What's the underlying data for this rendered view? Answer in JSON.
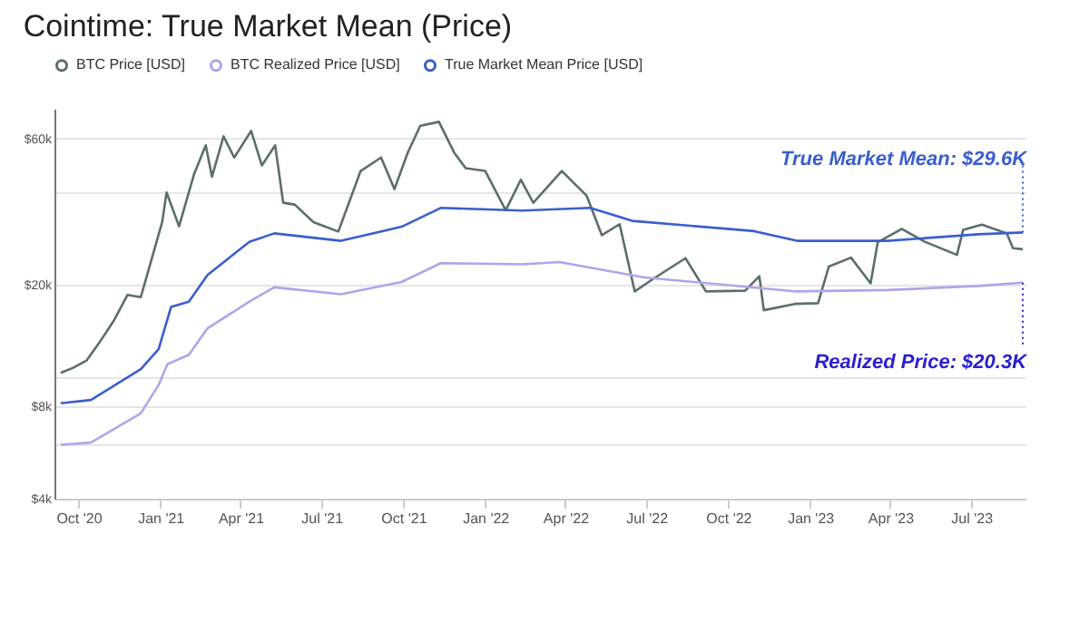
{
  "chart_data": {
    "type": "line",
    "title": "Cointime: True Market Mean (Price)",
    "x": [
      "2020-09-11",
      "2020-09-25",
      "2020-10-10",
      "2020-10-25",
      "2020-11-10",
      "2020-11-25",
      "2020-12-10",
      "2020-12-20",
      "2021-01-03",
      "2021-01-08",
      "2021-01-22",
      "2021-02-08",
      "2021-02-21",
      "2021-02-28",
      "2021-03-13",
      "2021-03-25",
      "2021-04-13",
      "2021-04-25",
      "2021-05-10",
      "2021-05-19",
      "2021-06-01",
      "2021-06-22",
      "2021-07-20",
      "2021-08-14",
      "2021-09-06",
      "2021-09-21",
      "2021-10-06",
      "2021-10-20",
      "2021-11-10",
      "2021-11-27",
      "2021-12-10",
      "2022-01-01",
      "2022-01-24",
      "2022-02-10",
      "2022-02-24",
      "2022-03-28",
      "2022-04-25",
      "2022-05-12",
      "2022-06-01",
      "2022-06-18",
      "2022-07-10",
      "2022-08-14",
      "2022-09-06",
      "2022-10-20",
      "2022-11-05",
      "2022-11-10",
      "2022-12-15",
      "2023-01-10",
      "2023-01-22",
      "2023-02-16",
      "2023-03-10",
      "2023-03-18",
      "2023-04-14",
      "2023-05-10",
      "2023-06-15",
      "2023-06-22",
      "2023-07-13",
      "2023-08-10",
      "2023-08-17",
      "2023-08-28"
    ],
    "series": [
      {
        "name": "BTC Price [USD]",
        "color": "#5b6f6c",
        "values": [
          10300,
          10700,
          11300,
          13000,
          15300,
          18500,
          18200,
          23000,
          32000,
          40000,
          31000,
          46000,
          57000,
          45000,
          61000,
          52000,
          63500,
          49000,
          57000,
          37000,
          36500,
          32000,
          29800,
          47000,
          52000,
          41000,
          54000,
          66000,
          68000,
          54000,
          48000,
          47000,
          35000,
          44000,
          37000,
          47000,
          39000,
          29000,
          31500,
          19000,
          21000,
          24400,
          19000,
          19100,
          21300,
          16500,
          17300,
          17400,
          22900,
          24500,
          20200,
          27500,
          30400,
          27600,
          25000,
          30200,
          31400,
          29400,
          26300,
          26100
        ]
      },
      {
        "name": "BTC Realized Price [USD]",
        "color": "#b1a4ea",
        "x": [
          "2020-09-11",
          "2020-10-15",
          "2020-12-10",
          "2020-12-30",
          "2021-01-09",
          "2021-02-02",
          "2021-02-23",
          "2021-04-11",
          "2021-05-09",
          "2021-07-23",
          "2021-09-29",
          "2021-11-12",
          "2022-02-12",
          "2022-03-25",
          "2022-06-29",
          "2022-12-17",
          "2023-03-29",
          "2023-07-09",
          "2023-08-28"
        ],
        "values": [
          6000,
          6100,
          7600,
          9400,
          11000,
          11800,
          14400,
          17600,
          19600,
          18600,
          20400,
          23500,
          23300,
          23700,
          21100,
          19000,
          19200,
          19800,
          20300
        ]
      },
      {
        "name": "True Market Mean Price [USD]",
        "color": "#3a5fcd",
        "x": [
          "2020-09-11",
          "2020-10-15",
          "2020-12-10",
          "2020-12-30",
          "2021-01-13",
          "2021-02-02",
          "2021-02-23",
          "2021-04-11",
          "2021-05-09",
          "2021-07-23",
          "2021-09-29",
          "2021-11-12",
          "2022-02-12",
          "2022-04-29",
          "2022-06-15",
          "2022-10-30",
          "2022-12-17",
          "2023-03-29",
          "2023-07-09",
          "2023-08-28"
        ],
        "values": [
          8200,
          8400,
          10600,
          12300,
          16900,
          17600,
          21500,
          27600,
          29400,
          27800,
          30900,
          35600,
          34900,
          35600,
          32300,
          29900,
          27800,
          27800,
          29200,
          29600
        ]
      }
    ],
    "annotations": [
      {
        "text": "True Market Mean: $29.6K",
        "x": "2023-08-28",
        "y": 29600
      },
      {
        "text": "Realized Price: $20.3K",
        "x": "2023-08-28",
        "y": 20300
      }
    ],
    "xlim": [
      "2020-09-04",
      "2023-08-31"
    ],
    "xticks": [
      {
        "value": "2020-10-01",
        "label": "Oct '20"
      },
      {
        "value": "2021-01-01",
        "label": "Jan '21"
      },
      {
        "value": "2021-04-01",
        "label": "Apr '21"
      },
      {
        "value": "2021-07-01",
        "label": "Jul '21"
      },
      {
        "value": "2021-10-01",
        "label": "Oct '21"
      },
      {
        "value": "2022-01-01",
        "label": "Jan '22"
      },
      {
        "value": "2022-04-01",
        "label": "Apr '22"
      },
      {
        "value": "2022-07-01",
        "label": "Jul '22"
      },
      {
        "value": "2022-10-01",
        "label": "Oct '22"
      },
      {
        "value": "2023-01-01",
        "label": "Jan '23"
      },
      {
        "value": "2023-04-01",
        "label": "Apr '23"
      },
      {
        "value": "2023-07-01",
        "label": "Jul '23"
      }
    ],
    "ylim": [
      4000,
      75000
    ],
    "yticks": [
      {
        "value": 4000,
        "label": "$4k"
      },
      {
        "value": 6000,
        "label": null
      },
      {
        "value": 8000,
        "label": "$8k"
      },
      {
        "value": 10000,
        "label": null
      },
      {
        "value": 20000,
        "label": "$20k"
      },
      {
        "value": 40000,
        "label": null
      },
      {
        "value": 60000,
        "label": "$60k"
      }
    ],
    "log": "y",
    "grid": "y",
    "legend": "top",
    "marker": "none"
  }
}
